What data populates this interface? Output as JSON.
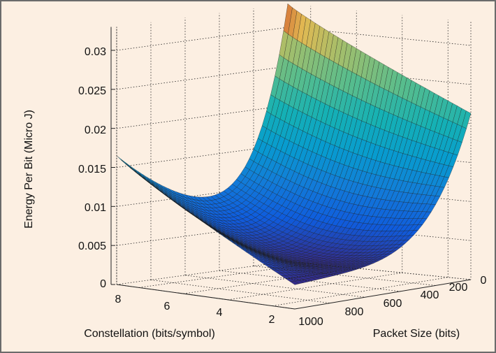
{
  "chart_data": {
    "type": "surface",
    "title": "",
    "zlabel": "Energy Per Bit (Micro J)",
    "xlabel": "Packet Size (bits)",
    "ylabel": "Constellation (bits/symbol)",
    "zlim": [
      0,
      0.033
    ],
    "z_ticks": [
      "0",
      "0.005",
      "0.01",
      "0.015",
      "0.02",
      "0.025",
      "0.03"
    ],
    "z_tick_values": [
      0,
      0.005,
      0.01,
      0.015,
      0.02,
      0.025,
      0.03
    ],
    "x_ticks": [
      "0",
      "200",
      "400",
      "600",
      "800",
      "1000"
    ],
    "x_tick_values": [
      0,
      200,
      400,
      600,
      800,
      1000
    ],
    "y_ticks": [
      "2",
      "4",
      "6",
      "8"
    ],
    "y_tick_values": [
      2,
      4,
      6,
      8
    ],
    "grid": true,
    "colormap": "parula",
    "xrange": [
      0,
      1000
    ],
    "yrange": [
      1,
      9
    ],
    "corner_values": [
      {
        "packet": 1000,
        "constellation": 9,
        "energy": 0.0165
      },
      {
        "packet": 0,
        "constellation": 9,
        "energy": 0.033
      },
      {
        "packet": 0,
        "constellation": 1,
        "energy": 0.0213
      },
      {
        "packet": 1000,
        "constellation": 1,
        "energy": 0.0031
      }
    ],
    "min_energy": 0.0031
  }
}
